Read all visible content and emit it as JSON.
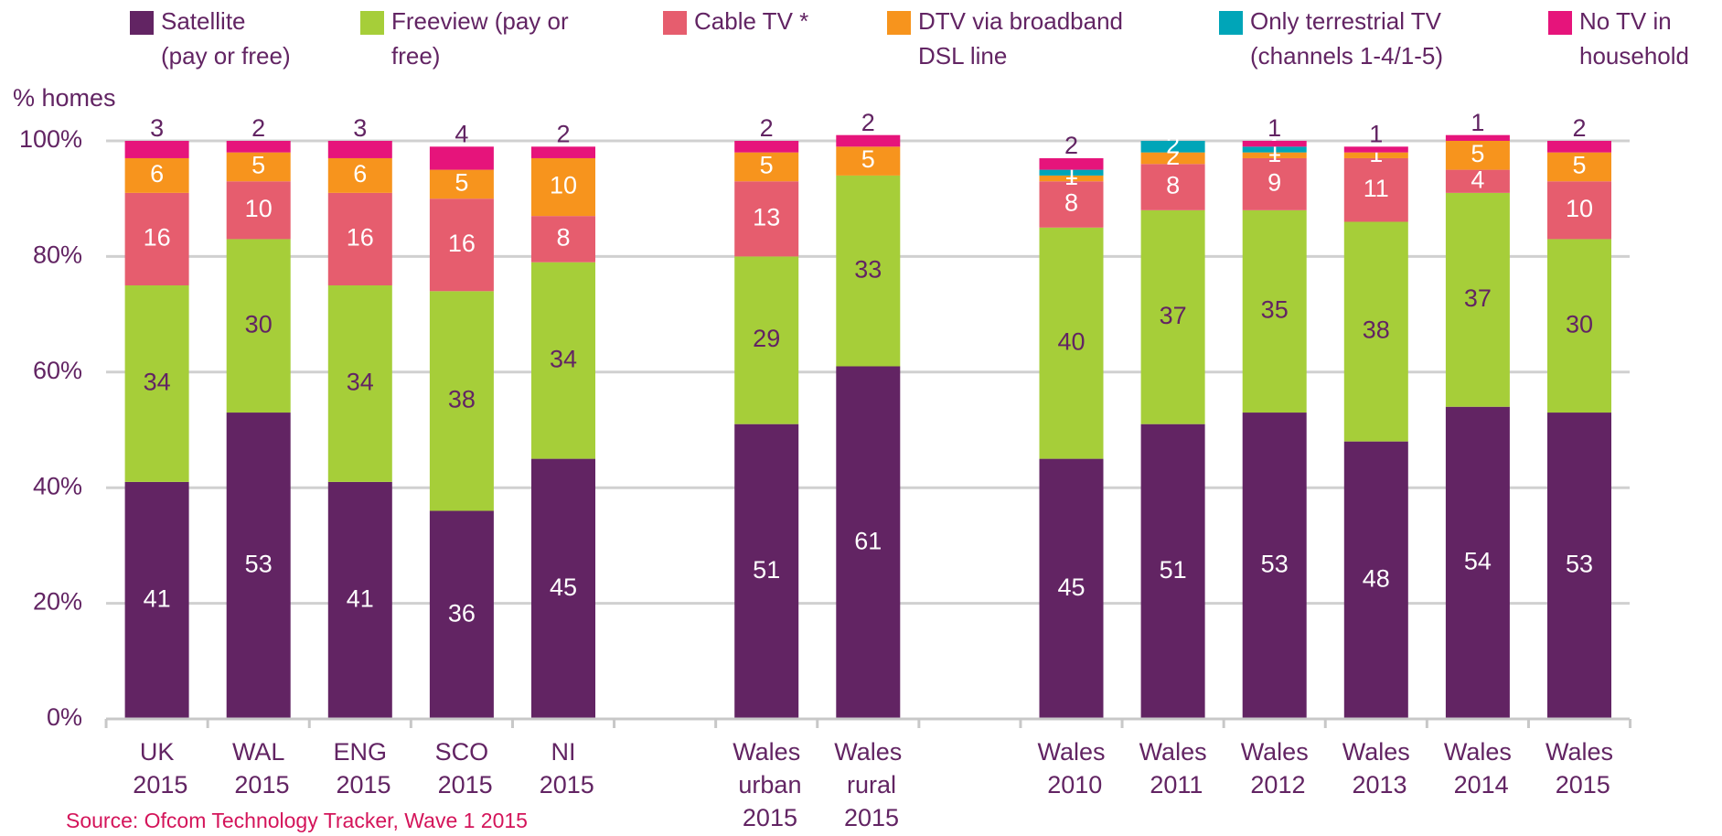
{
  "chart_data": {
    "type": "stacked_bar",
    "categories": [
      "UK 2015",
      "WAL 2015",
      "ENG 2015",
      "SCO 2015",
      "NI 2015",
      null,
      "Wales urban 2015",
      "Wales rural 2015",
      null,
      "Wales 2010",
      "Wales 2011",
      "Wales 2012",
      "Wales 2013",
      "Wales 2014",
      "Wales 2015"
    ],
    "series": [
      {
        "name": "Satellite (pay or free)",
        "color": "#622463",
        "values": [
          41,
          53,
          41,
          36,
          45,
          null,
          51,
          61,
          null,
          45,
          51,
          53,
          48,
          54,
          53
        ]
      },
      {
        "name": "Freeview (pay or free)",
        "color": "#a6ce39",
        "values": [
          34,
          30,
          34,
          38,
          34,
          null,
          29,
          33,
          null,
          40,
          37,
          35,
          38,
          37,
          30
        ]
      },
      {
        "name": "Cable TV *",
        "color": "#e65d6e",
        "values": [
          16,
          10,
          16,
          16,
          8,
          null,
          13,
          null,
          null,
          8,
          8,
          9,
          11,
          4,
          10
        ]
      },
      {
        "name": "DTV via broadband DSL line",
        "color": "#f7941d",
        "values": [
          6,
          5,
          6,
          5,
          10,
          null,
          5,
          5,
          null,
          1,
          2,
          1,
          1,
          5,
          5
        ]
      },
      {
        "name": "Only terrestrial TV (channels 1-4/1-5)",
        "color": "#00a5b8",
        "values": [
          null,
          null,
          null,
          null,
          null,
          null,
          null,
          null,
          null,
          1,
          2,
          1,
          null,
          null,
          null
        ]
      },
      {
        "name": "No TV in household",
        "color": "#e6147b",
        "values": [
          3,
          2,
          3,
          4,
          2,
          null,
          2,
          2,
          null,
          2,
          null,
          1,
          1,
          1,
          2
        ]
      }
    ],
    "y_label": "% homes",
    "ylim": [
      0,
      100
    ],
    "yticks": [
      {
        "value": 0,
        "label": "0%"
      },
      {
        "value": 20,
        "label": "20%"
      },
      {
        "value": 40,
        "label": "40%"
      },
      {
        "value": 60,
        "label": "60%"
      },
      {
        "value": 80,
        "label": "80%"
      },
      {
        "value": 100,
        "label": "100%"
      }
    ],
    "grid": true,
    "source": "Source: Ofcom Technology Tracker, Wave 1 2015"
  }
}
